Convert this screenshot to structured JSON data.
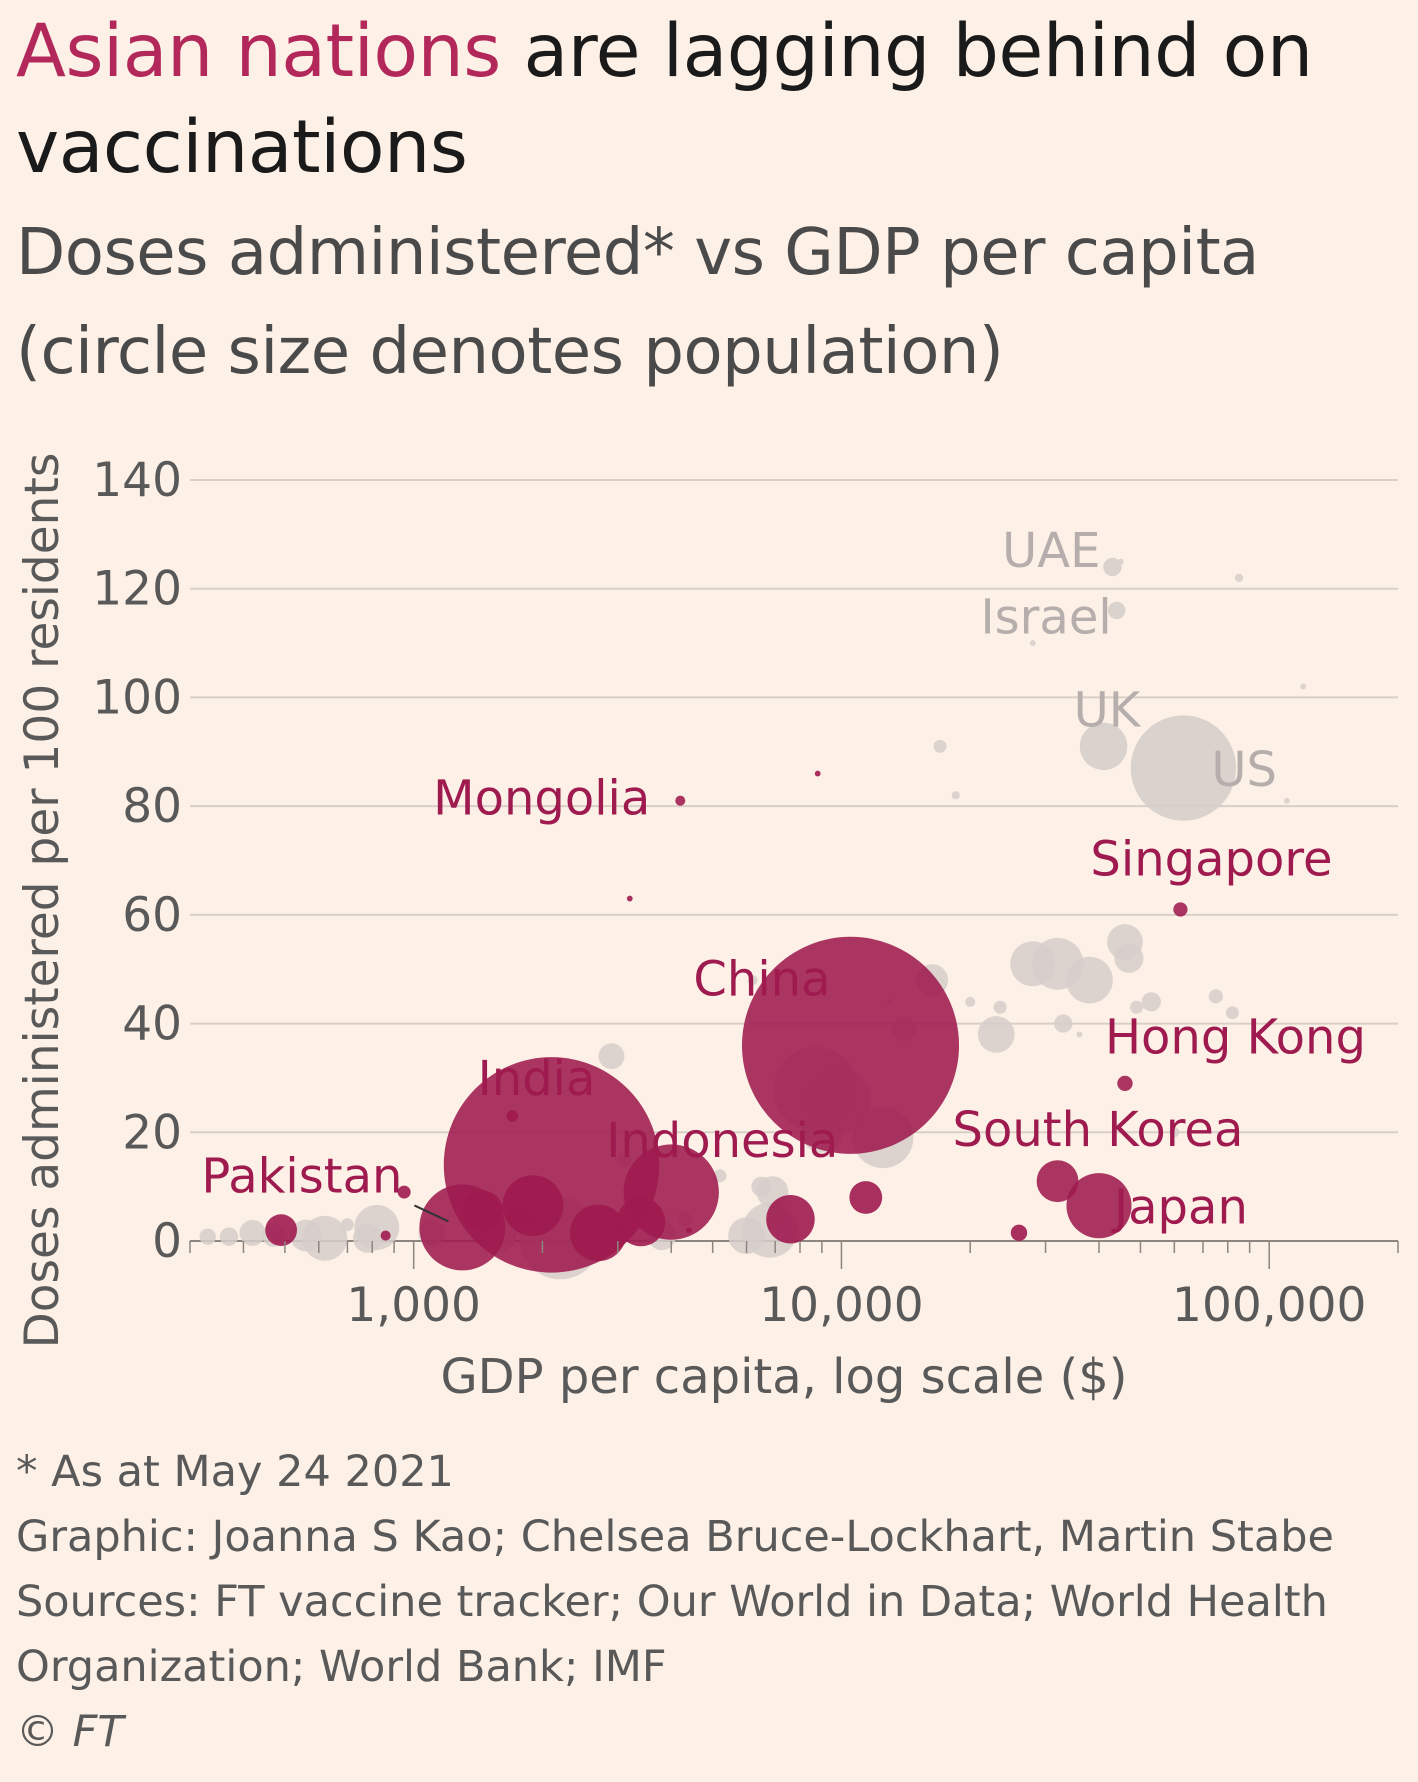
{
  "header": {
    "title_highlight": "Asian nations",
    "title_rest": " are lagging behind on vaccinations",
    "subtitle_line1": "Doses administered* vs GDP per capita",
    "subtitle_line2": "(circle size denotes population)"
  },
  "colors": {
    "background": "#fdf0e6",
    "asia": "#9e1a4f",
    "asia_title": "#b3285a",
    "other": "#d6ceca",
    "other_label": "#b5aeac",
    "grid": "#d8cfc8",
    "axis_text": "#595959"
  },
  "chart_data": {
    "type": "scatter",
    "xlabel": "GDP per capita, log scale ($)",
    "ylabel": "Doses administered per 100 residents",
    "x_scale": "log",
    "xlim": [
      300,
      200000
    ],
    "ylim": [
      0,
      140
    ],
    "x_ticks": [
      1000,
      10000,
      100000
    ],
    "x_tick_labels": [
      "1,000",
      "10,000",
      "100,000"
    ],
    "y_ticks": [
      0,
      20,
      40,
      60,
      80,
      100,
      120,
      140
    ],
    "y_tick_labels": [
      "0",
      "20",
      "40",
      "60",
      "80",
      "100",
      "120",
      "140"
    ],
    "grid": "horizontal",
    "size_encoding": "population",
    "highlighted_group": "Asian nations",
    "labelled_points": [
      {
        "label": "China",
        "gdp": 10500,
        "doses": 36,
        "pop_millions": 1400,
        "group": "asia"
      },
      {
        "label": "India",
        "gdp": 2100,
        "doses": 14,
        "pop_millions": 1380,
        "group": "asia"
      },
      {
        "label": "Indonesia",
        "gdp": 4000,
        "doses": 9,
        "pop_millions": 270,
        "group": "asia"
      },
      {
        "label": "Pakistan",
        "gdp": 1300,
        "doses": 2.5,
        "pop_millions": 220,
        "group": "asia"
      },
      {
        "label": "Mongolia",
        "gdp": 4200,
        "doses": 81,
        "pop_millions": 3,
        "group": "asia"
      },
      {
        "label": "Singapore",
        "gdp": 62000,
        "doses": 61,
        "pop_millions": 6,
        "group": "asia"
      },
      {
        "label": "Hong Kong",
        "gdp": 46000,
        "doses": 29,
        "pop_millions": 7,
        "group": "asia"
      },
      {
        "label": "South Korea",
        "gdp": 32000,
        "doses": 11,
        "pop_millions": 52,
        "group": "asia"
      },
      {
        "label": "Japan",
        "gdp": 40000,
        "doses": 6.5,
        "pop_millions": 126,
        "group": "asia"
      },
      {
        "label": "UAE",
        "gdp": 43000,
        "doses": 124,
        "pop_millions": 10,
        "group": "other"
      },
      {
        "label": "Israel",
        "gdp": 44000,
        "doses": 116,
        "pop_millions": 9,
        "group": "other"
      },
      {
        "label": "UK",
        "gdp": 41000,
        "doses": 91,
        "pop_millions": 67,
        "group": "other"
      },
      {
        "label": "US",
        "gdp": 63000,
        "doses": 87,
        "pop_millions": 330,
        "group": "other"
      }
    ],
    "other_asia_points": [
      {
        "gdp": 490,
        "doses": 2,
        "pop_millions": 30
      },
      {
        "gdp": 950,
        "doses": 9,
        "pop_millions": 5
      },
      {
        "gdp": 860,
        "doses": 1,
        "pop_millions": 3
      },
      {
        "gdp": 1450,
        "doses": 5.5,
        "pop_millions": 50
      },
      {
        "gdp": 1900,
        "doses": 6.5,
        "pop_millions": 110
      },
      {
        "gdp": 1750,
        "doses": 5,
        "pop_millions": 15
      },
      {
        "gdp": 1850,
        "doses": 4,
        "pop_millions": 8
      },
      {
        "gdp": 1700,
        "doses": 23,
        "pop_millions": 4
      },
      {
        "gdp": 2700,
        "doses": 1.5,
        "pop_millions": 95
      },
      {
        "gdp": 3400,
        "doses": 3.5,
        "pop_millions": 70
      },
      {
        "gdp": 3200,
        "doses": 63,
        "pop_millions": 1
      },
      {
        "gdp": 7600,
        "doses": 4,
        "pop_millions": 70
      },
      {
        "gdp": 8800,
        "doses": 86,
        "pop_millions": 1
      },
      {
        "gdp": 11400,
        "doses": 8,
        "pop_millions": 32
      },
      {
        "gdp": 26000,
        "doses": 1.5,
        "pop_millions": 8
      },
      {
        "gdp": 4400,
        "doses": 2,
        "pop_millions": 1
      }
    ],
    "other_points": [
      {
        "gdp": 330,
        "doses": 0.8,
        "pop_millions": 8
      },
      {
        "gdp": 370,
        "doses": 0.8,
        "pop_millions": 10
      },
      {
        "gdp": 420,
        "doses": 1.5,
        "pop_millions": 20
      },
      {
        "gdp": 470,
        "doses": 1,
        "pop_millions": 15
      },
      {
        "gdp": 560,
        "doses": 1,
        "pop_millions": 30
      },
      {
        "gdp": 620,
        "doses": 0.5,
        "pop_millions": 60
      },
      {
        "gdp": 700,
        "doses": 3,
        "pop_millions": 5
      },
      {
        "gdp": 780,
        "doses": 0.5,
        "pop_millions": 25
      },
      {
        "gdp": 820,
        "doses": 2.5,
        "pop_millions": 60
      },
      {
        "gdp": 1100,
        "doses": 1.5,
        "pop_millions": 20
      },
      {
        "gdp": 1600,
        "doses": 1,
        "pop_millions": 30
      },
      {
        "gdp": 2200,
        "doses": 0.5,
        "pop_millions": 200
      },
      {
        "gdp": 2500,
        "doses": 3,
        "pop_millions": 15
      },
      {
        "gdp": 2900,
        "doses": 34,
        "pop_millions": 20
      },
      {
        "gdp": 3100,
        "doses": 15,
        "pop_millions": 6
      },
      {
        "gdp": 3800,
        "doses": 1,
        "pop_millions": 25
      },
      {
        "gdp": 4300,
        "doses": 4,
        "pop_millions": 6
      },
      {
        "gdp": 5200,
        "doses": 12,
        "pop_millions": 5
      },
      {
        "gdp": 6000,
        "doses": 1,
        "pop_millions": 40
      },
      {
        "gdp": 6500,
        "doses": 10,
        "pop_millions": 12
      },
      {
        "gdp": 6900,
        "doses": 9,
        "pop_millions": 30
      },
      {
        "gdp": 6800,
        "doses": 2,
        "pop_millions": 90
      },
      {
        "gdp": 6200,
        "doses": 48,
        "pop_millions": 3
      },
      {
        "gdp": 7100,
        "doses": 5,
        "pop_millions": 6
      },
      {
        "gdp": 8700,
        "doses": 28,
        "pop_millions": 210
      },
      {
        "gdp": 9000,
        "doses": 20,
        "pop_millions": 50
      },
      {
        "gdp": 9800,
        "doses": 26,
        "pop_millions": 130
      },
      {
        "gdp": 12500,
        "doses": 19,
        "pop_millions": 110
      },
      {
        "gdp": 14000,
        "doses": 39,
        "pop_millions": 18
      },
      {
        "gdp": 16300,
        "doses": 48,
        "pop_millions": 30
      },
      {
        "gdp": 17000,
        "doses": 91,
        "pop_millions": 5
      },
      {
        "gdp": 18500,
        "doses": 82,
        "pop_millions": 2
      },
      {
        "gdp": 20000,
        "doses": 44,
        "pop_millions": 3
      },
      {
        "gdp": 23000,
        "doses": 38,
        "pop_millions": 40
      },
      {
        "gdp": 23500,
        "doses": 43,
        "pop_millions": 5
      },
      {
        "gdp": 28000,
        "doses": 51,
        "pop_millions": 60
      },
      {
        "gdp": 32000,
        "doses": 51,
        "pop_millions": 80
      },
      {
        "gdp": 33000,
        "doses": 40,
        "pop_millions": 10
      },
      {
        "gdp": 38000,
        "doses": 48,
        "pop_millions": 65
      },
      {
        "gdp": 46000,
        "doses": 55,
        "pop_millions": 38
      },
      {
        "gdp": 47000,
        "doses": 52,
        "pop_millions": 25
      },
      {
        "gdp": 49000,
        "doses": 43,
        "pop_millions": 5
      },
      {
        "gdp": 53000,
        "doses": 44,
        "pop_millions": 11
      },
      {
        "gdp": 60000,
        "doses": 20,
        "pop_millions": 3
      },
      {
        "gdp": 75000,
        "doses": 45,
        "pop_millions": 6
      },
      {
        "gdp": 82000,
        "doses": 42,
        "pop_millions": 5
      },
      {
        "gdp": 85000,
        "doses": 122,
        "pop_millions": 2
      },
      {
        "gdp": 110000,
        "doses": 81,
        "pop_millions": 1
      },
      {
        "gdp": 120000,
        "doses": 102,
        "pop_millions": 1
      },
      {
        "gdp": 28000,
        "doses": 110,
        "pop_millions": 1
      },
      {
        "gdp": 45000,
        "doses": 125,
        "pop_millions": 1
      },
      {
        "gdp": 13000,
        "doses": 44,
        "pop_millions": 1
      },
      {
        "gdp": 36000,
        "doses": 38,
        "pop_millions": 1
      }
    ]
  },
  "footer": {
    "note": "* As at May 24 2021",
    "graphic": "Graphic: Joanna S Kao; Chelsea Bruce-Lockhart, Martin Stabe",
    "sources_line1": "Sources: FT vaccine tracker; Our World in Data; World Health",
    "sources_line2": "Organization; World Bank; IMF",
    "copyright": "© FT"
  }
}
